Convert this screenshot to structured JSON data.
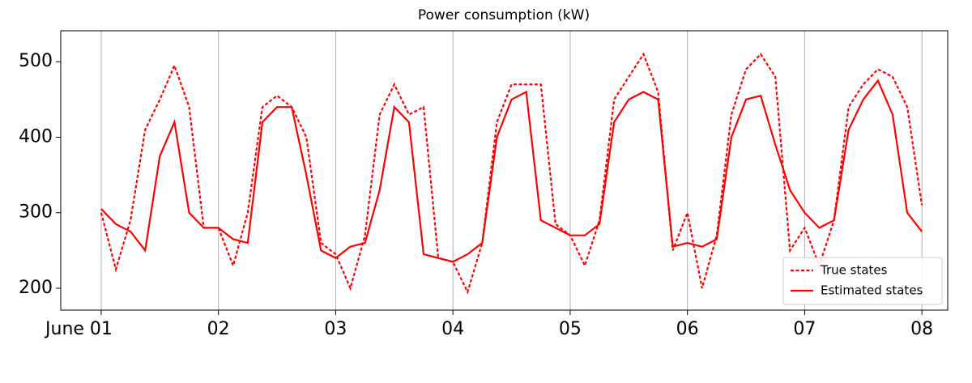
{
  "chart_data": {
    "type": "line",
    "title": "Power consumption (kW)",
    "x": [
      1,
      1.125,
      1.25,
      1.375,
      1.5,
      1.625,
      1.75,
      1.875,
      2,
      2.125,
      2.25,
      2.375,
      2.5,
      2.625,
      2.75,
      2.875,
      3,
      3.125,
      3.25,
      3.375,
      3.5,
      3.625,
      3.75,
      3.875,
      4,
      4.125,
      4.25,
      4.375,
      4.5,
      4.625,
      4.75,
      4.875,
      5,
      5.125,
      5.25,
      5.375,
      5.5,
      5.625,
      5.75,
      5.875,
      6,
      6.125,
      6.25,
      6.375,
      6.5,
      6.625,
      6.75,
      6.875,
      7,
      7.125,
      7.25,
      7.375,
      7.5,
      7.625,
      7.75,
      7.875,
      8
    ],
    "series": [
      {
        "name": "True states",
        "color": "#ff0000",
        "dash": true,
        "values": [
          300,
          225,
          290,
          410,
          450,
          495,
          440,
          280,
          280,
          230,
          300,
          440,
          455,
          440,
          400,
          260,
          245,
          200,
          270,
          430,
          470,
          430,
          440,
          240,
          235,
          195,
          260,
          420,
          470,
          470,
          470,
          285,
          270,
          230,
          290,
          450,
          480,
          510,
          460,
          250,
          300,
          200,
          270,
          430,
          490,
          510,
          480,
          250,
          280,
          230,
          290,
          440,
          470,
          490,
          480,
          440,
          310
        ]
      },
      {
        "name": "Estimated states",
        "color": "#ff0000",
        "dash": false,
        "values": [
          305,
          285,
          275,
          250,
          375,
          420,
          300,
          280,
          280,
          265,
          260,
          420,
          440,
          440,
          350,
          250,
          240,
          255,
          260,
          330,
          440,
          420,
          245,
          240,
          235,
          245,
          260,
          400,
          450,
          460,
          290,
          280,
          270,
          270,
          285,
          420,
          450,
          460,
          450,
          255,
          260,
          255,
          265,
          400,
          450,
          455,
          390,
          330,
          300,
          280,
          290,
          410,
          450,
          475,
          430,
          300,
          275
        ]
      }
    ],
    "xlim": [
      0.655,
      8.22
    ],
    "xticks": [
      {
        "value": 1,
        "label": "June 01"
      },
      {
        "value": 2,
        "label": "02"
      },
      {
        "value": 3,
        "label": "03"
      },
      {
        "value": 4,
        "label": "04"
      },
      {
        "value": 5,
        "label": "05"
      },
      {
        "value": 6,
        "label": "06"
      },
      {
        "value": 7,
        "label": "07"
      },
      {
        "value": 8,
        "label": "08"
      }
    ],
    "ylim": [
      171,
      541
    ],
    "yticks": [
      200,
      300,
      400,
      500
    ],
    "grid": "x",
    "legend": "lower right"
  }
}
